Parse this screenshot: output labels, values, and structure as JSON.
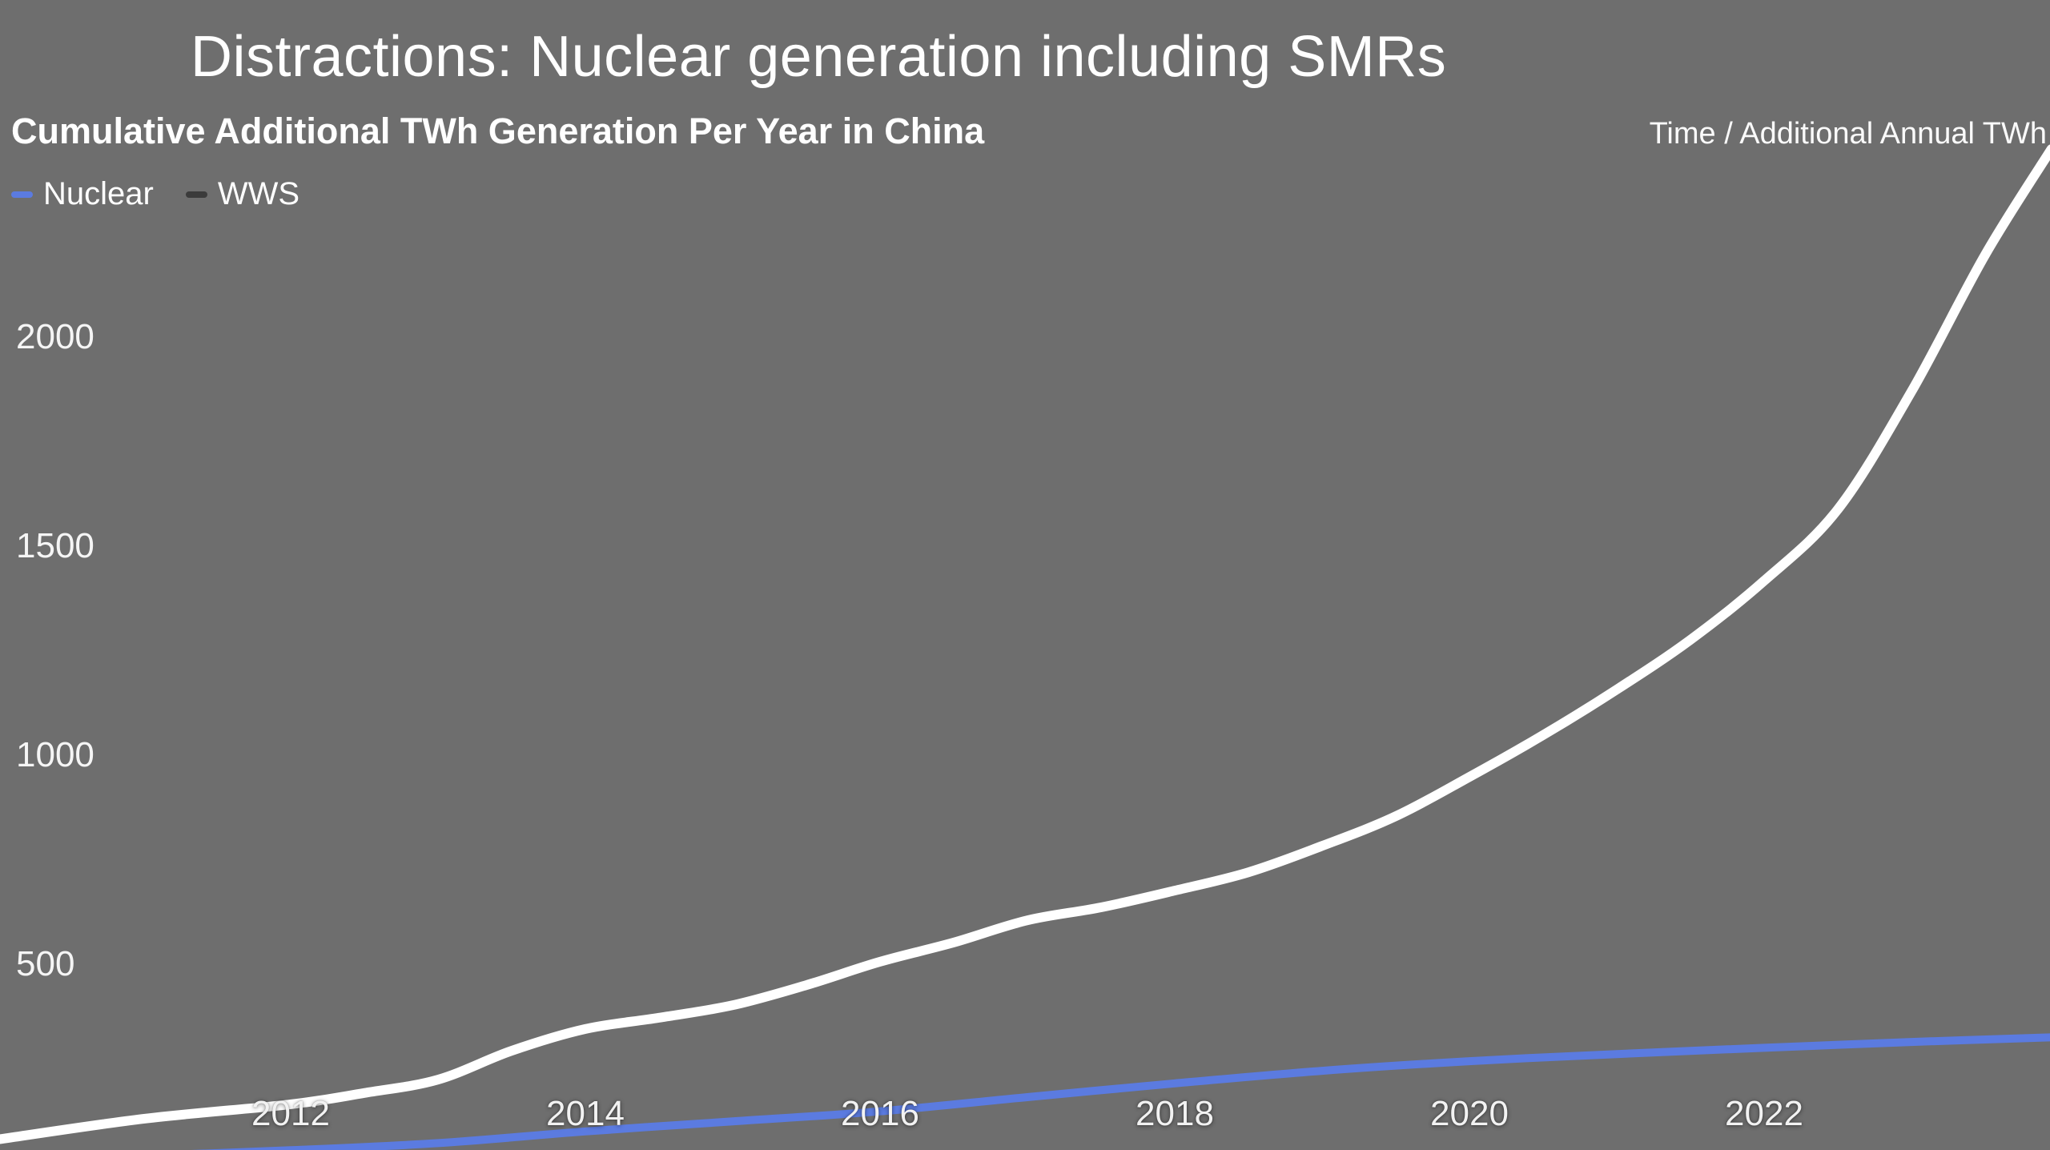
{
  "page": {
    "title": "Distractions: Nuclear generation including SMRs",
    "background_color": "#6e6e6e"
  },
  "chart_data": {
    "type": "line",
    "title": "Cumulative Additional TWh Generation Per Year in China",
    "axis_note": "Time / Additional Annual TWh",
    "legend_position": "top-left",
    "grid": false,
    "legend": [
      {
        "label": "Nuclear",
        "marker_color": "#5b7be0"
      },
      {
        "label": "WWS",
        "marker_color": "#3b3b3b"
      }
    ],
    "x_ticks": [
      "2012",
      "2014",
      "2016",
      "2018",
      "2020",
      "2022"
    ],
    "y_ticks": [
      "500",
      "1000",
      "1500",
      "2000"
    ],
    "x_range": [
      2010.0,
      2023.95
    ],
    "y_visible_range": [
      55,
      2500
    ],
    "ylabel": "Additional Annual TWh",
    "xlabel": "Time",
    "series": [
      {
        "name": "Nuclear",
        "color": "#5b7be0",
        "width": 10,
        "x": [
          2010,
          2011,
          2012,
          2013,
          2014,
          2015,
          2016,
          2017,
          2018,
          2019,
          2020,
          2021,
          2022,
          2023,
          2023.95
        ],
        "y": [
          30,
          42,
          55,
          72,
          100,
          124,
          148,
          182,
          215,
          245,
          268,
          285,
          300,
          314,
          325
        ]
      },
      {
        "name": "WWS",
        "color": "#ffffff",
        "width": 12,
        "x": [
          2010,
          2011,
          2012,
          2012.5,
          2013,
          2013.5,
          2014,
          2014.5,
          2015,
          2015.5,
          2016,
          2016.5,
          2017,
          2017.5,
          2018,
          2018.5,
          2019,
          2019.5,
          2020,
          2020.5,
          2021,
          2021.5,
          2022,
          2022.5,
          2023,
          2023.5,
          2023.95
        ],
        "y": [
          80,
          130,
          165,
          192,
          224,
          293,
          345,
          372,
          402,
          450,
          506,
          552,
          605,
          636,
          676,
          720,
          783,
          854,
          948,
          1048,
          1157,
          1276,
          1417,
          1588,
          1870,
          2197,
          2450
        ]
      }
    ]
  }
}
